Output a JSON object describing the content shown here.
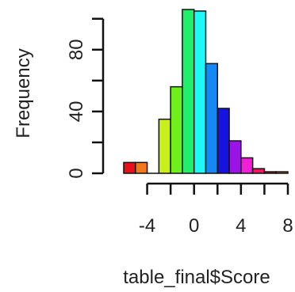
{
  "chart_data": {
    "type": "bar",
    "title": "",
    "xlabel": "table_final$Score",
    "ylabel": "Frequency",
    "bins": [
      {
        "x0": -6,
        "x1": -5,
        "count": 7,
        "color": "#e8111a"
      },
      {
        "x0": -5,
        "x1": -4,
        "count": 7,
        "color": "#f2781c"
      },
      {
        "x0": -4,
        "x1": -3,
        "count": 0,
        "color": "#e9a51d"
      },
      {
        "x0": -3,
        "x1": -2,
        "count": 35,
        "color": "#c7ef1a"
      },
      {
        "x0": -2,
        "x1": -1,
        "count": 56,
        "color": "#6ff01c"
      },
      {
        "x0": -1,
        "x1": 0,
        "count": 106,
        "color": "#1ef06b"
      },
      {
        "x0": 0,
        "x1": 1,
        "count": 105,
        "color": "#1ef8f6"
      },
      {
        "x0": 1,
        "x1": 2,
        "count": 71,
        "color": "#1588f4"
      },
      {
        "x0": 2,
        "x1": 3,
        "count": 42,
        "color": "#1612df"
      },
      {
        "x0": 3,
        "x1": 4,
        "count": 21,
        "color": "#9a14e8"
      },
      {
        "x0": 4,
        "x1": 5,
        "count": 10,
        "color": "#f31fd6"
      },
      {
        "x0": 5,
        "x1": 6,
        "count": 3,
        "color": "#f1195b"
      },
      {
        "x0": 6,
        "x1": 7,
        "count": 1,
        "color": "#e8111a"
      },
      {
        "x0": 7,
        "x1": 8,
        "count": 1,
        "color": "#f2781c"
      }
    ],
    "xticks": [
      -4,
      -2,
      0,
      2,
      4,
      6,
      8
    ],
    "xtick_labels": [
      "-4",
      "",
      "0",
      "",
      "4",
      "",
      "8"
    ],
    "yticks": [
      0,
      20,
      40,
      60,
      80,
      100
    ],
    "ytick_labels": [
      "0",
      "",
      "40",
      "",
      "80",
      ""
    ],
    "xlim": [
      -6,
      8
    ],
    "ylim": [
      0,
      106
    ],
    "grid": false,
    "legend": "none"
  }
}
